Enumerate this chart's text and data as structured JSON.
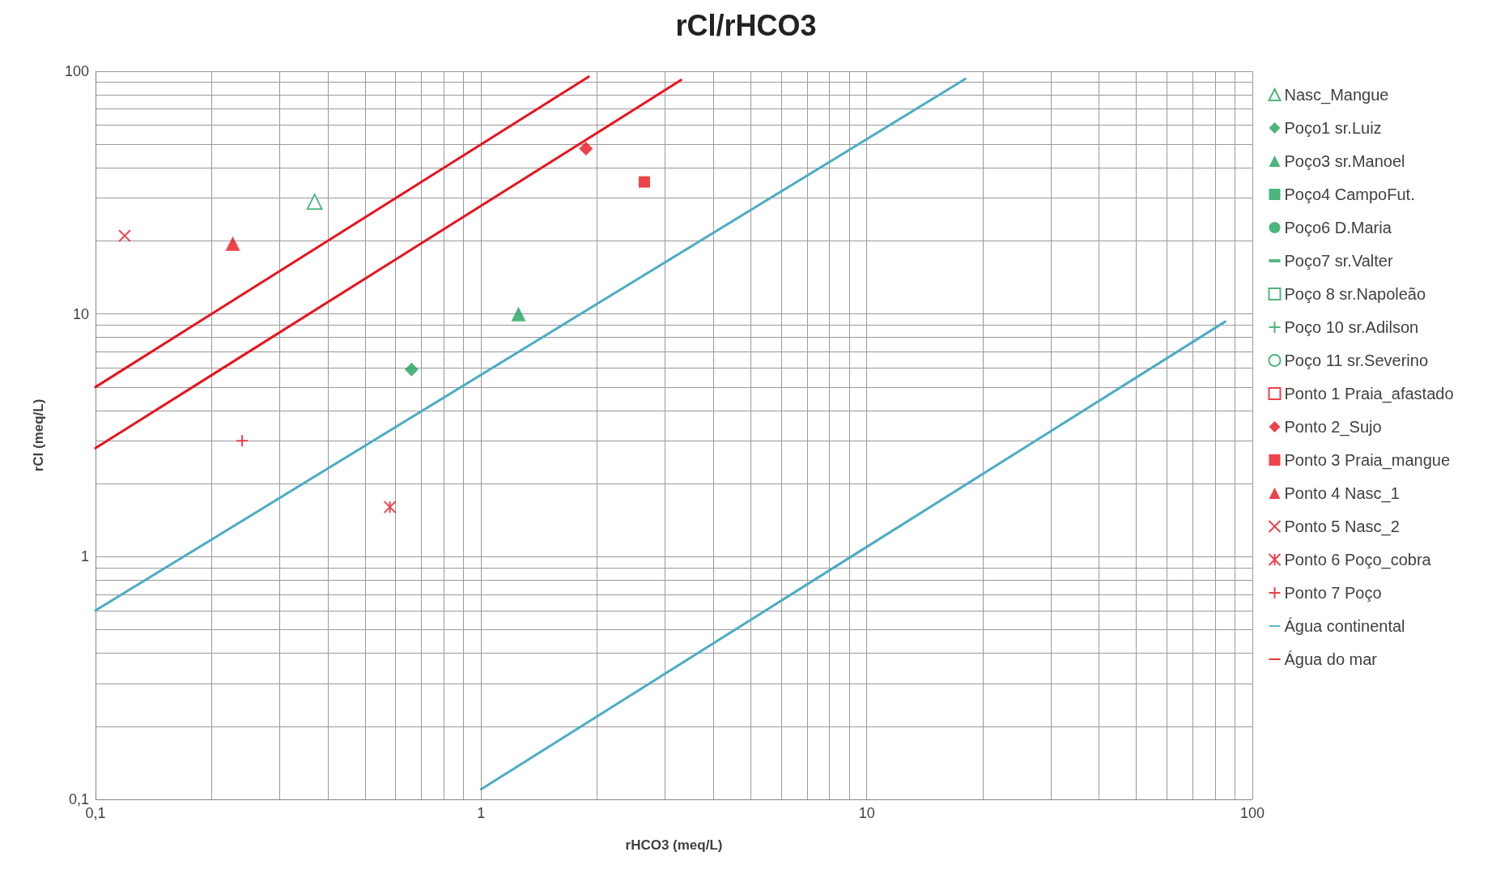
{
  "chart_data": {
    "type": "scatter",
    "title": "rCl/rHCO3",
    "xlabel": "rHCO3 (meq/L)",
    "ylabel": "rCl (meq/L)",
    "log": "xy",
    "grid": true,
    "legend": "right",
    "xlim": [
      0.1,
      100
    ],
    "ylim": [
      0.1,
      100
    ],
    "xticks": [
      {
        "value": 0.1,
        "label": "0,1"
      },
      {
        "value": 0.2,
        "label": null
      },
      {
        "value": 0.3,
        "label": null
      },
      {
        "value": 0.4,
        "label": null
      },
      {
        "value": 0.5,
        "label": null
      },
      {
        "value": 0.6,
        "label": null
      },
      {
        "value": 0.7,
        "label": null
      },
      {
        "value": 0.8,
        "label": null
      },
      {
        "value": 0.9,
        "label": null
      },
      1,
      {
        "value": 2,
        "label": null
      },
      {
        "value": 3,
        "label": null
      },
      {
        "value": 4,
        "label": null
      },
      {
        "value": 5,
        "label": null
      },
      {
        "value": 6,
        "label": null
      },
      {
        "value": 7,
        "label": null
      },
      {
        "value": 8,
        "label": null
      },
      {
        "value": 9,
        "label": null
      },
      10,
      {
        "value": 20,
        "label": null
      },
      {
        "value": 30,
        "label": null
      },
      {
        "value": 40,
        "label": null
      },
      {
        "value": 50,
        "label": null
      },
      {
        "value": 60,
        "label": null
      },
      {
        "value": 70,
        "label": null
      },
      {
        "value": 80,
        "label": null
      },
      {
        "value": 90,
        "label": null
      },
      100
    ],
    "yticks": [
      {
        "value": 0.1,
        "label": "0,1"
      },
      {
        "value": 0.2,
        "label": null
      },
      {
        "value": 0.3,
        "label": null
      },
      {
        "value": 0.4,
        "label": null
      },
      {
        "value": 0.5,
        "label": null
      },
      {
        "value": 0.6,
        "label": null
      },
      {
        "value": 0.7,
        "label": null
      },
      {
        "value": 0.8,
        "label": null
      },
      {
        "value": 0.9,
        "label": null
      },
      1,
      {
        "value": 2,
        "label": null
      },
      {
        "value": 3,
        "label": null
      },
      {
        "value": 4,
        "label": null
      },
      {
        "value": 5,
        "label": null
      },
      {
        "value": 6,
        "label": null
      },
      {
        "value": 7,
        "label": null
      },
      {
        "value": 8,
        "label": null
      },
      {
        "value": 9,
        "label": null
      },
      10,
      {
        "value": 20,
        "label": null
      },
      {
        "value": 30,
        "label": null
      },
      {
        "value": 40,
        "label": null
      },
      {
        "value": 50,
        "label": null
      },
      {
        "value": 60,
        "label": null
      },
      {
        "value": 70,
        "label": null
      },
      {
        "value": 80,
        "label": null
      },
      {
        "value": 90,
        "label": null
      },
      100
    ],
    "series": [
      {
        "name": "Nasc_Mangue",
        "color": "#1fa35c",
        "marker": "triangle-open",
        "x": [
          0.37
        ],
        "values": [
          29
        ]
      },
      {
        "name": "Poço1 sr.Luiz",
        "color": "#1fa35c",
        "marker": "diamond",
        "x": [
          0.66
        ],
        "values": [
          5.9
        ]
      },
      {
        "name": "Poço3 sr.Manoel",
        "color": "#1fa35c",
        "marker": "triangle",
        "x": [
          1.25
        ],
        "values": [
          10
        ]
      },
      {
        "name": "Poço4 CampoFut.",
        "color": "#1fa35c",
        "marker": "square"
      },
      {
        "name": "Poço6 D.Maria",
        "color": "#1fa35c",
        "marker": "circle"
      },
      {
        "name": "Poço7 sr.Valter",
        "color": "#1fa35c",
        "marker": "dash"
      },
      {
        "name": "Poço 8 sr.Napoleão",
        "color": "#1fa35c",
        "marker": "square-open"
      },
      {
        "name": "Poço 10 sr.Adilson",
        "color": "#1fa35c",
        "marker": "plus"
      },
      {
        "name": "Poço 11 sr.Severino",
        "color": "#1fa35c",
        "marker": "circle-open"
      },
      {
        "name": "Ponto 1 Praia_afastado",
        "color": "#e8141c",
        "marker": "square-open"
      },
      {
        "name": "Ponto 2_Sujo",
        "color": "#e8141c",
        "marker": "diamond",
        "x": [
          1.87
        ],
        "values": [
          48
        ]
      },
      {
        "name": "Ponto 3 Praia_mangue",
        "color": "#e8141c",
        "marker": "square",
        "x": [
          2.65
        ],
        "values": [
          35
        ]
      },
      {
        "name": "Ponto 4 Nasc_1",
        "color": "#e8141c",
        "marker": "triangle",
        "x": [
          0.227
        ],
        "values": [
          19.5
        ]
      },
      {
        "name": "Ponto 5 Nasc_2",
        "color": "#e8141c",
        "marker": "x",
        "x": [
          0.119
        ],
        "values": [
          21
        ]
      },
      {
        "name": "Ponto 6 Poço_cobra",
        "color": "#e8141c",
        "marker": "cross",
        "x": [
          0.58
        ],
        "values": [
          1.6
        ]
      },
      {
        "name": "Ponto 7 Poço",
        "color": "#e8141c",
        "marker": "plus",
        "x": [
          0.24
        ],
        "values": [
          3
        ]
      },
      {
        "name": "Água continental",
        "type": "line",
        "color": "#4bacc6",
        "marker": "none",
        "x": [
          0.1,
          18,
          null,
          1,
          85
        ],
        "values": [
          0.6,
          93,
          null,
          0.11,
          9.3
        ]
      },
      {
        "name": "Água do mar",
        "type": "line",
        "color": "#e8141c",
        "marker": "none",
        "x": [
          0.1,
          1.9,
          null,
          0.1,
          3.3
        ],
        "values": [
          5,
          95,
          null,
          2.8,
          92
        ]
      }
    ]
  }
}
